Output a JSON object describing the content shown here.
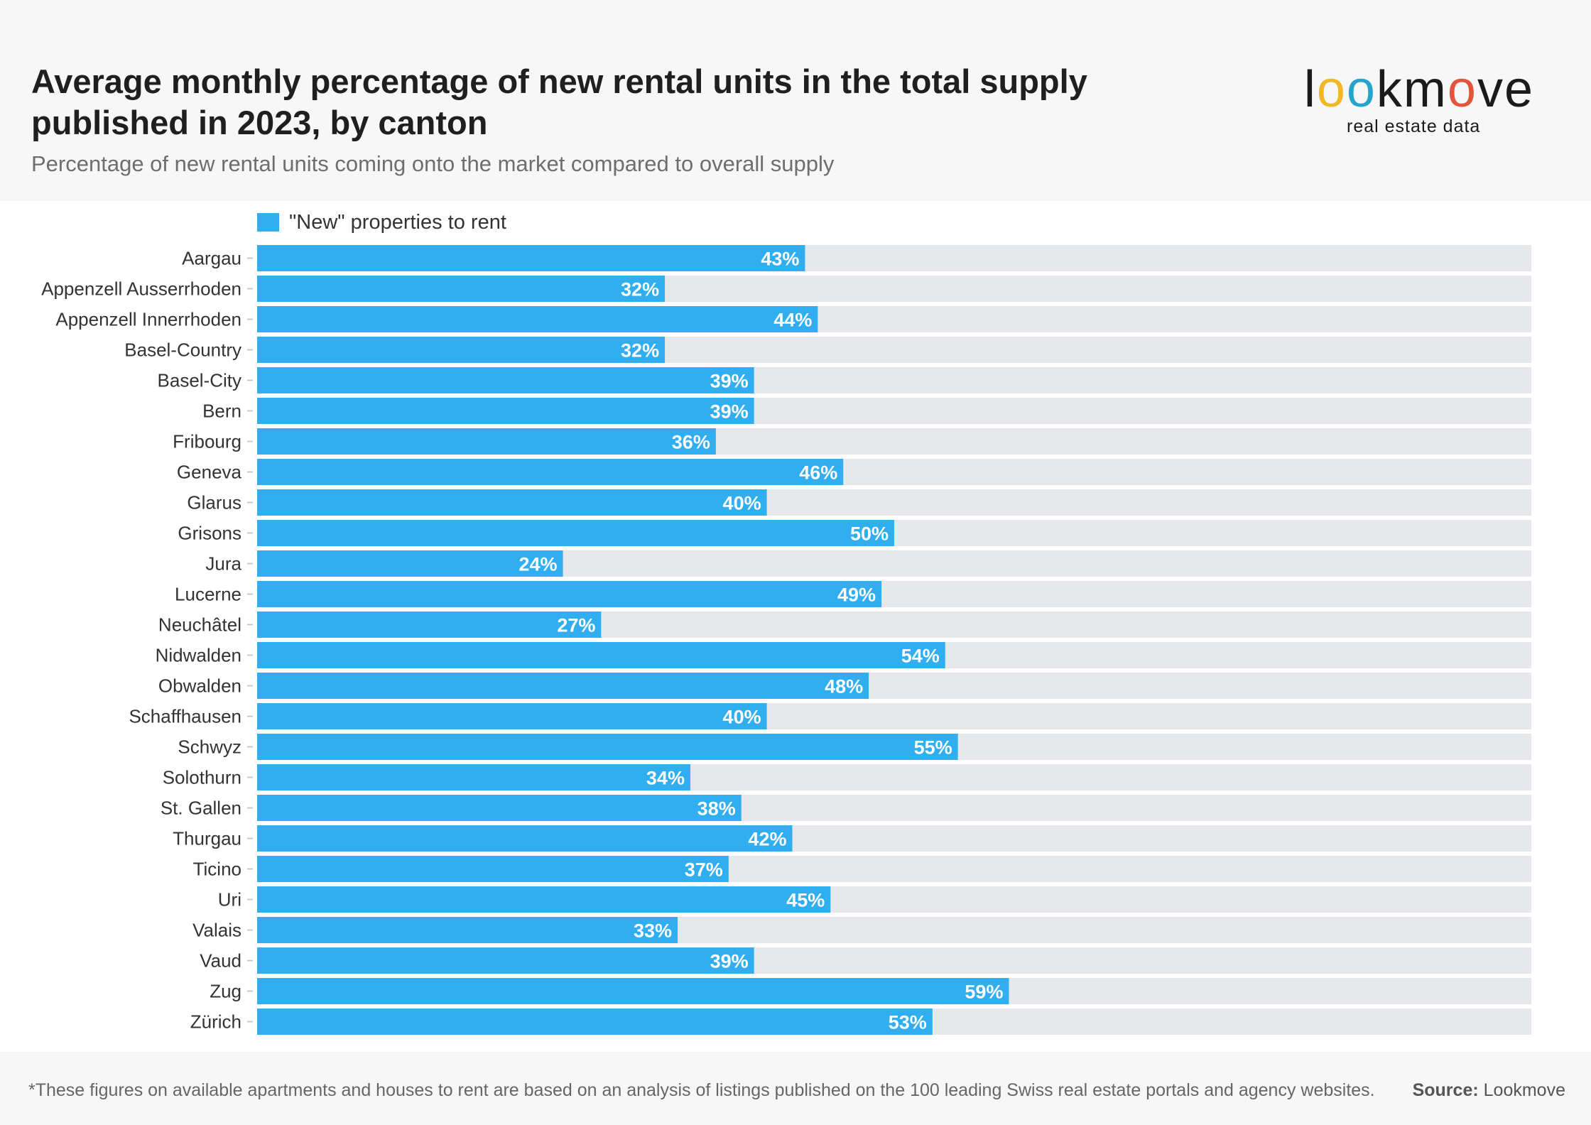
{
  "title": "Average monthly percentage of new rental units in the total supply published in 2023, by canton",
  "subtitle": "Percentage of new rental units coming onto the market compared to overall supply",
  "logo": {
    "letters": [
      "l",
      "o",
      "o",
      "k",
      "m",
      "o",
      "v",
      "e"
    ],
    "letter_colors": [
      "#1b1b1b",
      "#f2b824",
      "#26a5cc",
      "#1b1b1b",
      "#1b1b1b",
      "#e2543b",
      "#1b1b1b",
      "#1b1b1b"
    ],
    "tagline": "real estate data"
  },
  "footer": {
    "note": "*These figures on available apartments and houses to rent are based on an analysis of listings published on the 100 leading Swiss real estate portals and agency websites.",
    "source_label": "Source:",
    "source_value": "Lookmove"
  },
  "colors": {
    "bar": "#31aef0",
    "track": "#e6e8ec",
    "label_text": "#ffffff",
    "category_text": "#333333"
  },
  "chart_data": {
    "type": "bar",
    "orientation": "horizontal",
    "xlim": [
      0,
      100
    ],
    "value_suffix": "%",
    "grid": false,
    "legend_position": "top-left",
    "categories": [
      "Aargau",
      "Appenzell Ausserrhoden",
      "Appenzell Innerrhoden",
      "Basel-Country",
      "Basel-City",
      "Bern",
      "Fribourg",
      "Geneva",
      "Glarus",
      "Grisons",
      "Jura",
      "Lucerne",
      "Neuchâtel",
      "Nidwalden",
      "Obwalden",
      "Schaffhausen",
      "Schwyz",
      "Solothurn",
      "St. Gallen",
      "Thurgau",
      "Ticino",
      "Uri",
      "Valais",
      "Vaud",
      "Zug",
      "Zürich"
    ],
    "series": [
      {
        "name": "\"New\" properties to rent",
        "values": [
          43,
          32,
          44,
          32,
          39,
          39,
          36,
          46,
          40,
          50,
          24,
          49,
          27,
          54,
          48,
          40,
          55,
          34,
          38,
          42,
          37,
          45,
          33,
          39,
          59,
          53
        ]
      }
    ]
  }
}
